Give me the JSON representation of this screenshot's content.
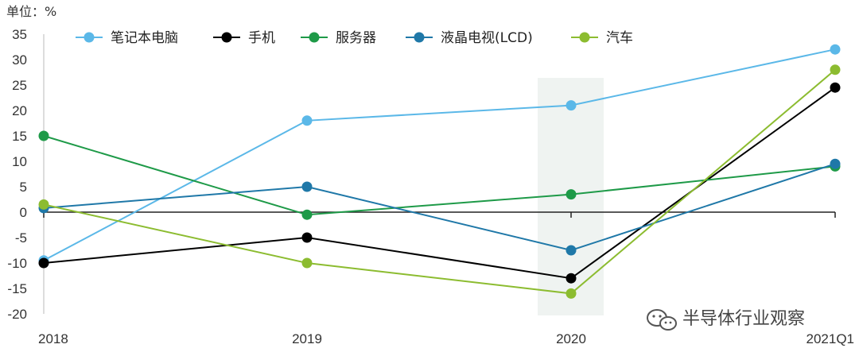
{
  "chart_data": {
    "type": "line",
    "unit_label": "单位：%",
    "x": [
      "2018",
      "2019",
      "2020",
      "2021Q1"
    ],
    "ylim": [
      -20,
      35
    ],
    "yticks": [
      35,
      30,
      25,
      20,
      15,
      10,
      5,
      0,
      -5,
      -10,
      -15,
      -20
    ],
    "highlight_category": "2020",
    "legend_position": "top",
    "grid": false,
    "series": [
      {
        "name": "笔记本电脑",
        "color": "#5BB8E8",
        "values": [
          -9.5,
          18,
          21,
          32
        ]
      },
      {
        "name": "手机",
        "color": "#000000",
        "values": [
          -10,
          -5,
          -13,
          24.5
        ]
      },
      {
        "name": "服务器",
        "color": "#1E9A48",
        "values": [
          15,
          -0.5,
          3.5,
          9
        ]
      },
      {
        "name": "液晶电视(LCD)",
        "color": "#1F78A8",
        "values": [
          0.8,
          5,
          -7.5,
          9.5
        ]
      },
      {
        "name": "汽车",
        "color": "#8CBC30",
        "values": [
          1.5,
          -10,
          -16,
          28
        ]
      }
    ]
  },
  "watermark": {
    "text": "半导体行业观察",
    "icon": "wechat-icon"
  }
}
